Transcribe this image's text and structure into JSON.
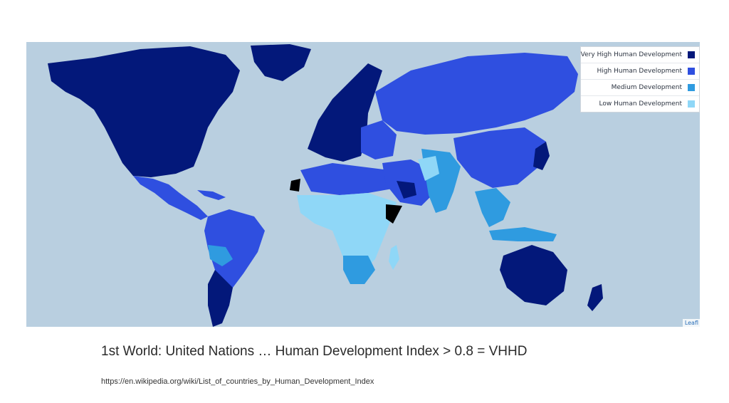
{
  "map": {
    "legend": [
      {
        "label": "Very High Human Development",
        "color": "#03187a"
      },
      {
        "label": "High Human Development",
        "color": "#2f4fe0"
      },
      {
        "label": "Medium Development",
        "color": "#2f9be0"
      },
      {
        "label": "Low Human Development",
        "color": "#8fd7f7"
      }
    ],
    "ocean_color": "#b9cfe0",
    "no_data_color": "#000000",
    "attribution": "Leafl"
  },
  "caption": "1st World: United Nations … Human Development Index > 0.8 = VHHD",
  "source_url": "https://en.wikipedia.org/wiki/List_of_countries_by_Human_Development_Index"
}
